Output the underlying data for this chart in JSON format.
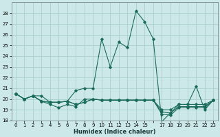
{
  "xlabel": "Humidex (Indice chaleur)",
  "bg_color": "#cce8e8",
  "grid_color": "#aacfcf",
  "line_color": "#1a6b5a",
  "x": [
    0,
    1,
    2,
    3,
    4,
    5,
    6,
    7,
    8,
    9,
    10,
    11,
    12,
    13,
    14,
    15,
    16,
    17,
    18,
    19,
    20,
    21,
    22,
    23
  ],
  "series": [
    [
      20.5,
      20.0,
      20.3,
      20.3,
      19.7,
      19.7,
      19.8,
      20.8,
      21.0,
      21.0,
      25.6,
      23.0,
      25.3,
      24.8,
      28.2,
      27.2,
      25.6,
      17.9,
      18.7,
      19.5,
      19.5,
      21.2,
      19.0,
      19.9
    ],
    [
      20.5,
      20.0,
      20.3,
      19.8,
      19.7,
      19.7,
      19.8,
      19.5,
      19.7,
      20.0,
      19.9,
      19.9,
      19.9,
      19.9,
      19.9,
      19.9,
      19.9,
      19.0,
      19.0,
      19.5,
      19.5,
      19.5,
      19.5,
      19.9
    ],
    [
      20.5,
      20.0,
      20.3,
      19.8,
      19.7,
      19.7,
      19.8,
      19.5,
      19.7,
      20.0,
      19.9,
      19.9,
      19.9,
      19.9,
      19.9,
      19.9,
      19.9,
      18.8,
      18.7,
      19.3,
      19.3,
      19.3,
      19.3,
      19.9
    ],
    [
      20.5,
      20.0,
      20.3,
      19.8,
      19.5,
      19.2,
      19.5,
      19.3,
      20.0,
      20.0,
      19.9,
      19.9,
      19.9,
      19.9,
      19.9,
      19.9,
      19.9,
      18.6,
      18.5,
      19.2,
      19.2,
      19.2,
      19.2,
      19.9
    ]
  ],
  "ylim": [
    18,
    29
  ],
  "yticks": [
    18,
    19,
    20,
    21,
    22,
    23,
    24,
    25,
    26,
    27,
    28
  ],
  "xlim": [
    -0.5,
    23.5
  ],
  "xtick_labels": [
    "0",
    "1",
    "2",
    "3",
    "4",
    "5",
    "6",
    "7",
    "8",
    "9",
    "10",
    "11",
    "12",
    "13",
    "14",
    "15",
    "",
    "17",
    "18",
    "19",
    "20",
    "21",
    "22",
    "23"
  ]
}
